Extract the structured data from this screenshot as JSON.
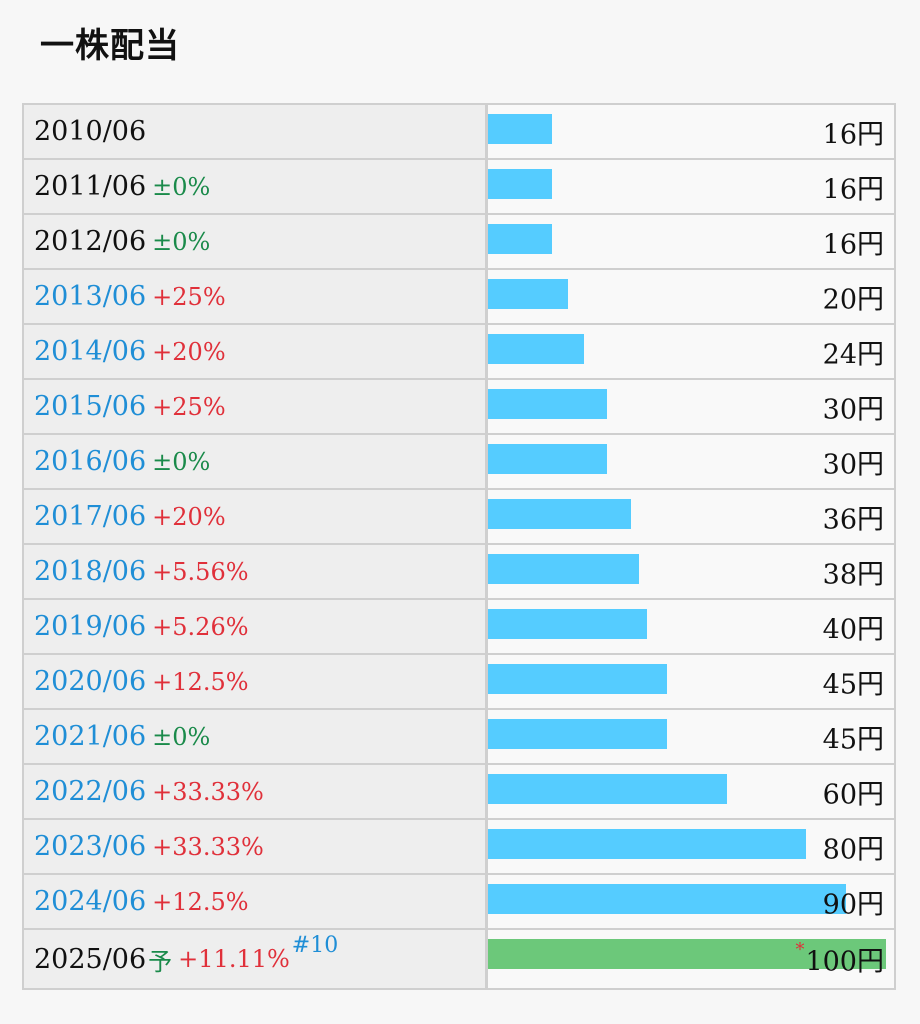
{
  "title": "一株配当",
  "unit": "円",
  "colors": {
    "bar": "#55ccff",
    "forecast_bar": "#6cc87a",
    "link": "#1f8ed6",
    "positive": "#e0303a",
    "flat": "#1a8a4a"
  },
  "rows": [
    {
      "year": "2010/06",
      "change": "",
      "change_type": "none",
      "link": false,
      "amount": "16円",
      "value": 16
    },
    {
      "year": "2011/06",
      "change": "±0%",
      "change_type": "flat",
      "link": false,
      "amount": "16円",
      "value": 16
    },
    {
      "year": "2012/06",
      "change": "±0%",
      "change_type": "flat",
      "link": false,
      "amount": "16円",
      "value": 16
    },
    {
      "year": "2013/06",
      "change": "+25%",
      "change_type": "pos",
      "link": true,
      "amount": "20円",
      "value": 20
    },
    {
      "year": "2014/06",
      "change": "+20%",
      "change_type": "pos",
      "link": true,
      "amount": "24円",
      "value": 24
    },
    {
      "year": "2015/06",
      "change": "+25%",
      "change_type": "pos",
      "link": true,
      "amount": "30円",
      "value": 30
    },
    {
      "year": "2016/06",
      "change": "±0%",
      "change_type": "flat",
      "link": true,
      "amount": "30円",
      "value": 30
    },
    {
      "year": "2017/06",
      "change": "+20%",
      "change_type": "pos",
      "link": true,
      "amount": "36円",
      "value": 36
    },
    {
      "year": "2018/06",
      "change": "+5.56%",
      "change_type": "pos",
      "link": true,
      "amount": "38円",
      "value": 38
    },
    {
      "year": "2019/06",
      "change": "+5.26%",
      "change_type": "pos",
      "link": true,
      "amount": "40円",
      "value": 40
    },
    {
      "year": "2020/06",
      "change": "+12.5%",
      "change_type": "pos",
      "link": true,
      "amount": "45円",
      "value": 45
    },
    {
      "year": "2021/06",
      "change": "±0%",
      "change_type": "flat",
      "link": true,
      "amount": "45円",
      "value": 45
    },
    {
      "year": "2022/06",
      "change": "+33.33%",
      "change_type": "pos",
      "link": true,
      "amount": "60円",
      "value": 60
    },
    {
      "year": "2023/06",
      "change": "+33.33%",
      "change_type": "pos",
      "link": true,
      "amount": "80円",
      "value": 80
    },
    {
      "year": "2024/06",
      "change": "+12.5%",
      "change_type": "pos",
      "link": true,
      "amount": "90円",
      "value": 90
    }
  ],
  "forecast": {
    "year": "2025/06",
    "forecast_mark": "予",
    "change": "+11.11%",
    "note": "#10",
    "amount_mark": "*",
    "amount": "100円",
    "value": 100
  },
  "chart_data": {
    "type": "bar",
    "orientation": "horizontal",
    "title": "一株配当",
    "categories": [
      "2010/06",
      "2011/06",
      "2012/06",
      "2013/06",
      "2014/06",
      "2015/06",
      "2016/06",
      "2017/06",
      "2018/06",
      "2019/06",
      "2020/06",
      "2021/06",
      "2022/06",
      "2023/06",
      "2024/06",
      "2025/06"
    ],
    "values": [
      16,
      16,
      16,
      20,
      24,
      30,
      30,
      36,
      38,
      40,
      45,
      45,
      60,
      80,
      90,
      100
    ],
    "xlim": [
      0,
      100
    ],
    "grid": false
  }
}
